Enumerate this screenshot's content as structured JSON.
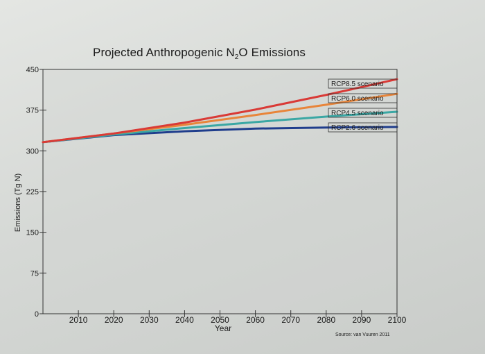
{
  "title_main": "Projected Anthropogenic N",
  "title_sub": "2",
  "title_end": "O Emissions",
  "source": "Source: van Vuuren 2011",
  "chart_data": {
    "type": "line",
    "title": "Projected Anthropogenic N2O Emissions",
    "xlabel": "Year",
    "ylabel": "Emissions (Tg N)",
    "xlim": [
      2000,
      2100
    ],
    "ylim": [
      0,
      450
    ],
    "xticks": [
      2010,
      2020,
      2030,
      2040,
      2050,
      2060,
      2070,
      2080,
      2090,
      2100
    ],
    "yticks": [
      0,
      75,
      150,
      225,
      300,
      375,
      450
    ],
    "grid": false,
    "legend": "top-right, labels at line ends",
    "series": [
      {
        "name": "RCP8.5 scenario",
        "color": "#d93a36",
        "x": [
          2000,
          2020,
          2040,
          2060,
          2080,
          2100
        ],
        "values": [
          316,
          332,
          352,
          376,
          403,
          432
        ]
      },
      {
        "name": "RCP6.0 scenario",
        "color": "#e8853a",
        "x": [
          2000,
          2020,
          2040,
          2060,
          2080,
          2100
        ],
        "values": [
          316,
          332,
          348,
          366,
          385,
          405
        ]
      },
      {
        "name": "RCP4.5 scenario",
        "color": "#3aa7a4",
        "x": [
          2000,
          2020,
          2040,
          2060,
          2080,
          2100
        ],
        "values": [
          316,
          330,
          342,
          353,
          363,
          372
        ]
      },
      {
        "name": "RCP2.6 scenario",
        "color": "#1f3d8c",
        "x": [
          2000,
          2020,
          2040,
          2060,
          2080,
          2100
        ],
        "values": [
          316,
          329,
          336,
          341,
          343,
          344
        ]
      }
    ]
  }
}
